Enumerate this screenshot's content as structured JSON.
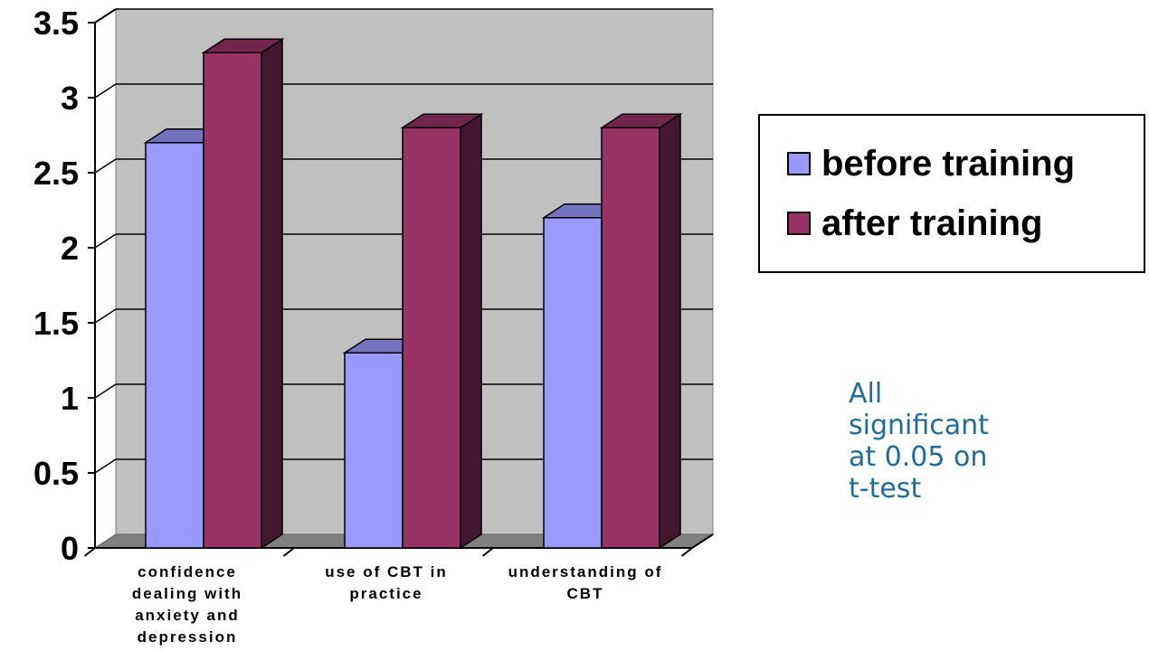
{
  "chart_data": {
    "type": "bar",
    "categories": [
      [
        "confidence",
        "dealing with",
        "anxiety and",
        "depression"
      ],
      [
        "use of CBT in",
        "practice"
      ],
      [
        "understanding of",
        "CBT"
      ]
    ],
    "series": [
      {
        "name": "before training",
        "values": [
          2.7,
          1.3,
          2.2
        ],
        "color": "#9999ff"
      },
      {
        "name": "after training",
        "values": [
          3.3,
          2.8,
          2.8
        ],
        "color": "#993366"
      }
    ],
    "yticks": [
      "0",
      "0.5",
      "1",
      "1.5",
      "2",
      "2.5",
      "3",
      "3.5"
    ],
    "ylim": [
      0,
      3.5
    ],
    "grid": true,
    "legend_position": "right",
    "title": "",
    "xlabel": "",
    "ylabel": ""
  },
  "annotation": {
    "lines": [
      "All",
      "significant",
      "at 0.05 on",
      "t-test"
    ]
  }
}
